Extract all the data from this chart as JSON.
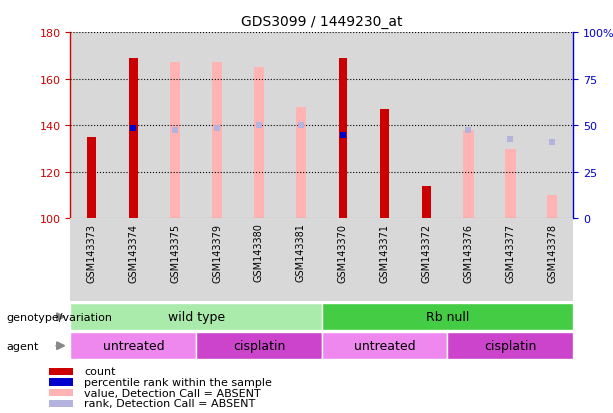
{
  "title": "GDS3099 / 1449230_at",
  "samples": [
    "GSM143373",
    "GSM143374",
    "GSM143375",
    "GSM143379",
    "GSM143380",
    "GSM143381",
    "GSM143370",
    "GSM143371",
    "GSM143372",
    "GSM143376",
    "GSM143377",
    "GSM143378"
  ],
  "ylim_left": [
    100,
    180
  ],
  "ylim_right": [
    0,
    100
  ],
  "yticks_left": [
    100,
    120,
    140,
    160,
    180
  ],
  "yticks_right": [
    0,
    25,
    50,
    75,
    100
  ],
  "yticklabels_right": [
    "0",
    "25",
    "50",
    "75",
    "100%"
  ],
  "count_values": [
    135,
    169,
    null,
    null,
    null,
    null,
    169,
    147,
    114,
    null,
    null,
    null
  ],
  "rank_values": [
    null,
    139,
    null,
    null,
    null,
    null,
    136,
    null,
    null,
    null,
    null,
    null
  ],
  "absent_value_values": [
    null,
    null,
    167,
    167,
    165,
    148,
    null,
    null,
    null,
    138,
    130,
    110
  ],
  "absent_rank_values": [
    null,
    null,
    138,
    139,
    140,
    140,
    null,
    null,
    null,
    138,
    134,
    133
  ],
  "count_color": "#cc0000",
  "rank_color": "#0000cc",
  "absent_value_color": "#ffb3b3",
  "absent_rank_color": "#b3b3dd",
  "genotype_groups": [
    {
      "label": "wild type",
      "start": 0,
      "end": 6,
      "color": "#aaeaaa"
    },
    {
      "label": "Rb null",
      "start": 6,
      "end": 12,
      "color": "#44cc44"
    }
  ],
  "agent_groups": [
    {
      "label": "untreated",
      "start": 0,
      "end": 3,
      "color": "#ee88ee"
    },
    {
      "label": "cisplatin",
      "start": 3,
      "end": 6,
      "color": "#cc44cc"
    },
    {
      "label": "untreated",
      "start": 6,
      "end": 9,
      "color": "#ee88ee"
    },
    {
      "label": "cisplatin",
      "start": 9,
      "end": 12,
      "color": "#cc44cc"
    }
  ],
  "legend_items": [
    {
      "label": "count",
      "color": "#cc0000"
    },
    {
      "label": "percentile rank within the sample",
      "color": "#0000cc"
    },
    {
      "label": "value, Detection Call = ABSENT",
      "color": "#ffb3b3"
    },
    {
      "label": "rank, Detection Call = ABSENT",
      "color": "#b3b3dd"
    }
  ],
  "bg_color": "#ffffff",
  "axis_color_left": "#cc0000",
  "axis_color_right": "#0000cc",
  "col_bg_even": "#d8d8d8",
  "col_bg_odd": "#f0f0f0"
}
